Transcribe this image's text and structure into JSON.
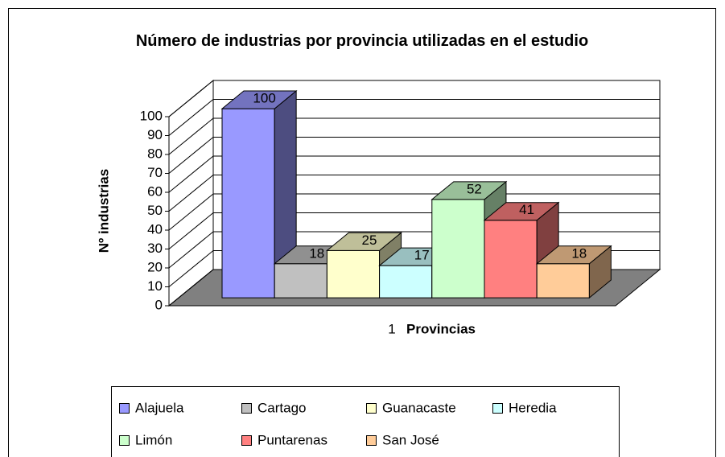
{
  "chart_data": {
    "type": "bar",
    "title": "Número de industrias por provincia utilizadas en el estudio",
    "ylabel": "Nº industrias",
    "xlabel": "Provincias",
    "categories": [
      "1"
    ],
    "series": [
      {
        "name": "Alajuela",
        "color": "#9999ff",
        "values": [
          100
        ]
      },
      {
        "name": "Cartago",
        "color": "#c0c0c0",
        "values": [
          18
        ]
      },
      {
        "name": "Guanacaste",
        "color": "#ffffcc",
        "values": [
          25
        ]
      },
      {
        "name": "Heredia",
        "color": "#ccffff",
        "values": [
          17
        ]
      },
      {
        "name": "Limón",
        "color": "#ccffcc",
        "values": [
          52
        ]
      },
      {
        "name": "Puntarenas",
        "color": "#ff8080",
        "values": [
          41
        ]
      },
      {
        "name": "San José",
        "color": "#ffcc99",
        "values": [
          18
        ]
      }
    ],
    "ylim": [
      0,
      100
    ],
    "yticks": [
      0,
      10,
      20,
      30,
      40,
      50,
      60,
      70,
      80,
      90,
      100
    ],
    "grid": true
  }
}
